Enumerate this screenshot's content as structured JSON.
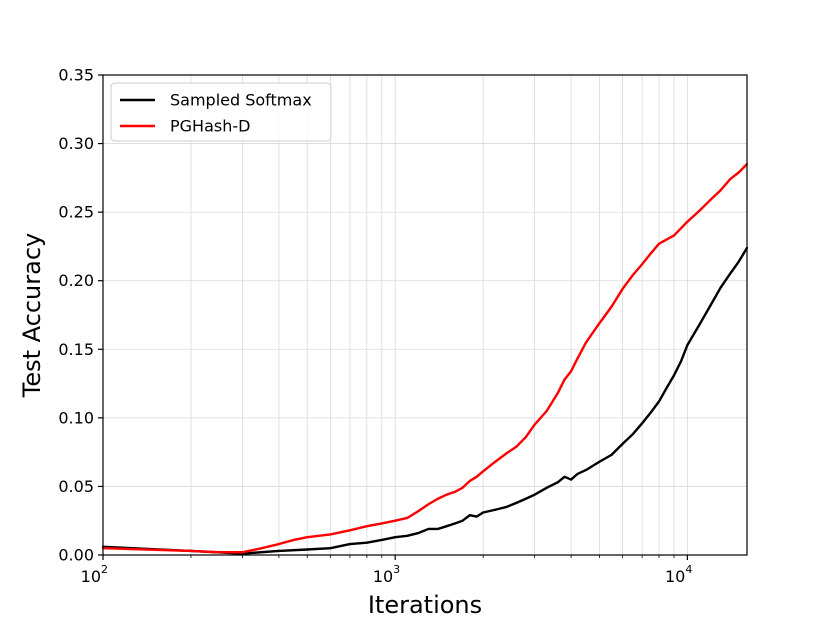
{
  "chart_data": {
    "type": "line",
    "xlabel": "Iterations",
    "ylabel": "Test Accuracy",
    "xscale": "log",
    "xlim": [
      100,
      16000
    ],
    "ylim": [
      0,
      0.35
    ],
    "yticks": [
      "0.00",
      "0.05",
      "0.10",
      "0.15",
      "0.20",
      "0.25",
      "0.30",
      "0.35"
    ],
    "xticks": [
      {
        "value": 100,
        "base": "10",
        "exp": "2"
      },
      {
        "value": 1000,
        "base": "10",
        "exp": "3"
      },
      {
        "value": 10000,
        "base": "10",
        "exp": "4"
      }
    ],
    "grid": true,
    "legend_position": "top-left",
    "series": [
      {
        "name": "Sampled Softmax",
        "color": "#000000",
        "points": [
          [
            100,
            0.006
          ],
          [
            200,
            0.003
          ],
          [
            300,
            0.001
          ],
          [
            400,
            0.003
          ],
          [
            500,
            0.004
          ],
          [
            600,
            0.005
          ],
          [
            700,
            0.008
          ],
          [
            800,
            0.009
          ],
          [
            900,
            0.011
          ],
          [
            1000,
            0.013
          ],
          [
            1100,
            0.014
          ],
          [
            1200,
            0.016
          ],
          [
            1300,
            0.019
          ],
          [
            1400,
            0.019
          ],
          [
            1500,
            0.021
          ],
          [
            1600,
            0.023
          ],
          [
            1700,
            0.025
          ],
          [
            1800,
            0.029
          ],
          [
            1900,
            0.028
          ],
          [
            2000,
            0.031
          ],
          [
            2200,
            0.033
          ],
          [
            2400,
            0.035
          ],
          [
            2600,
            0.038
          ],
          [
            2800,
            0.041
          ],
          [
            3000,
            0.044
          ],
          [
            3300,
            0.049
          ],
          [
            3600,
            0.053
          ],
          [
            3800,
            0.057
          ],
          [
            4000,
            0.055
          ],
          [
            4200,
            0.059
          ],
          [
            4500,
            0.062
          ],
          [
            5000,
            0.068
          ],
          [
            5500,
            0.073
          ],
          [
            6000,
            0.081
          ],
          [
            6500,
            0.088
          ],
          [
            7000,
            0.096
          ],
          [
            7500,
            0.104
          ],
          [
            8000,
            0.112
          ],
          [
            8500,
            0.122
          ],
          [
            9000,
            0.131
          ],
          [
            9500,
            0.141
          ],
          [
            10000,
            0.153
          ],
          [
            11000,
            0.168
          ],
          [
            12000,
            0.182
          ],
          [
            13000,
            0.195
          ],
          [
            14000,
            0.205
          ],
          [
            15000,
            0.214
          ],
          [
            15500,
            0.219
          ],
          [
            16000,
            0.224
          ]
        ]
      },
      {
        "name": "PGHash-D",
        "color": "#ff0000",
        "points": [
          [
            100,
            0.005
          ],
          [
            200,
            0.003
          ],
          [
            250,
            0.002
          ],
          [
            300,
            0.002
          ],
          [
            350,
            0.005
          ],
          [
            400,
            0.008
          ],
          [
            450,
            0.011
          ],
          [
            500,
            0.013
          ],
          [
            600,
            0.015
          ],
          [
            700,
            0.018
          ],
          [
            800,
            0.021
          ],
          [
            900,
            0.023
          ],
          [
            1000,
            0.025
          ],
          [
            1100,
            0.027
          ],
          [
            1200,
            0.032
          ],
          [
            1300,
            0.037
          ],
          [
            1400,
            0.041
          ],
          [
            1500,
            0.044
          ],
          [
            1600,
            0.046
          ],
          [
            1700,
            0.049
          ],
          [
            1800,
            0.054
          ],
          [
            1900,
            0.057
          ],
          [
            2000,
            0.061
          ],
          [
            2200,
            0.068
          ],
          [
            2400,
            0.074
          ],
          [
            2600,
            0.079
          ],
          [
            2800,
            0.086
          ],
          [
            3000,
            0.095
          ],
          [
            3300,
            0.105
          ],
          [
            3600,
            0.118
          ],
          [
            3800,
            0.128
          ],
          [
            4000,
            0.134
          ],
          [
            4200,
            0.143
          ],
          [
            4500,
            0.155
          ],
          [
            5000,
            0.169
          ],
          [
            5500,
            0.181
          ],
          [
            6000,
            0.194
          ],
          [
            6500,
            0.204
          ],
          [
            7000,
            0.212
          ],
          [
            7500,
            0.22
          ],
          [
            8000,
            0.227
          ],
          [
            9000,
            0.233
          ],
          [
            10000,
            0.243
          ],
          [
            11000,
            0.251
          ],
          [
            12000,
            0.259
          ],
          [
            13000,
            0.266
          ],
          [
            14000,
            0.274
          ],
          [
            15000,
            0.279
          ],
          [
            16000,
            0.285
          ]
        ]
      }
    ]
  }
}
